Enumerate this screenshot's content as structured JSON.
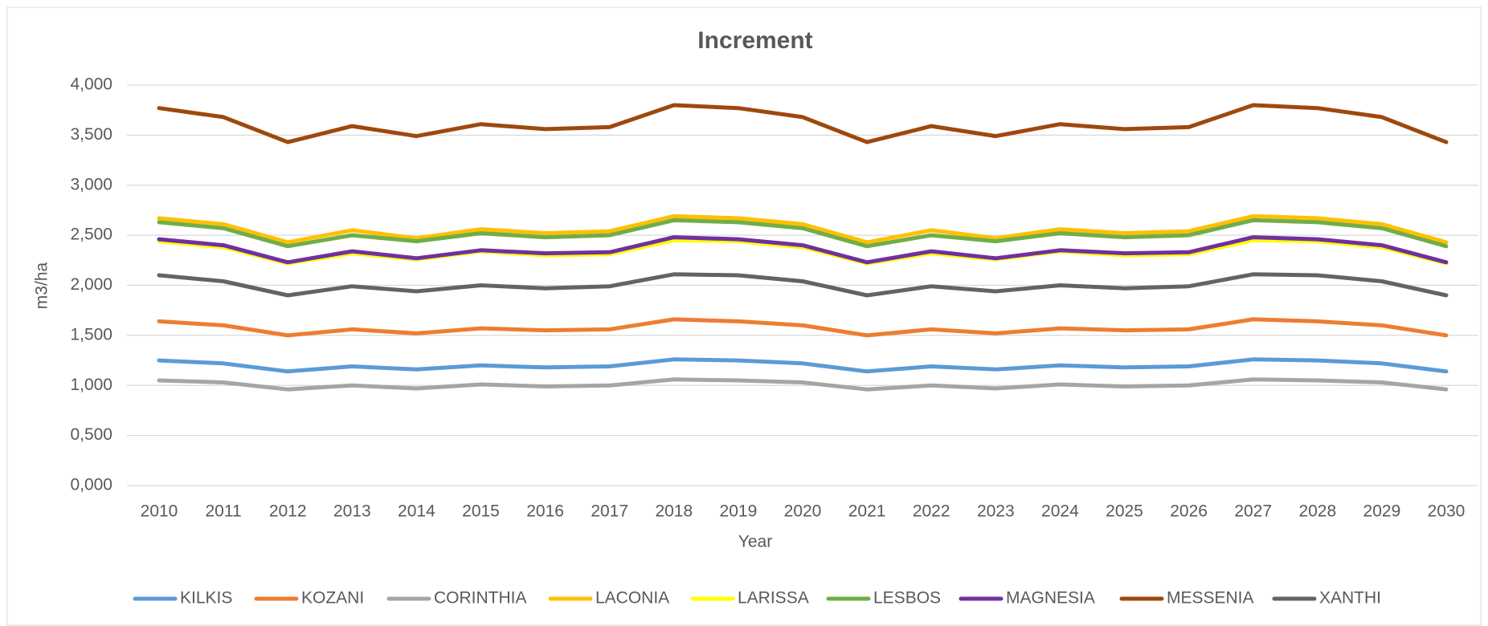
{
  "chart_data": {
    "type": "line",
    "title": "Increment",
    "x_label": "Year",
    "y_label": "m3/ha",
    "categories": [
      "2010",
      "2011",
      "2012",
      "2013",
      "2014",
      "2015",
      "2016",
      "2017",
      "2018",
      "2019",
      "2020",
      "2021",
      "2022",
      "2023",
      "2024",
      "2025",
      "2026",
      "2027",
      "2028",
      "2029",
      "2030"
    ],
    "ylim": [
      0,
      4
    ],
    "yticks": [
      {
        "value": 0,
        "label": "0,000"
      },
      {
        "value": 0.5,
        "label": "0,500"
      },
      {
        "value": 1,
        "label": "1,000"
      },
      {
        "value": 1.5,
        "label": "1,500"
      },
      {
        "value": 2,
        "label": "2,000"
      },
      {
        "value": 2.5,
        "label": "2,500"
      },
      {
        "value": 3,
        "label": "3,000"
      },
      {
        "value": 3.5,
        "label": "3,500"
      },
      {
        "value": 4,
        "label": "4,000"
      }
    ],
    "grid": true,
    "legend": "bottom",
    "series": [
      {
        "name": "KILKIS",
        "color": "#5b9bd5",
        "values": [
          1.25,
          1.22,
          1.14,
          1.19,
          1.16,
          1.2,
          1.18,
          1.19,
          1.26,
          1.25,
          1.22,
          1.14,
          1.19,
          1.16,
          1.2,
          1.18,
          1.19,
          1.26,
          1.25,
          1.22,
          1.14
        ]
      },
      {
        "name": "KOZANI",
        "color": "#ed7d31",
        "values": [
          1.64,
          1.6,
          1.5,
          1.56,
          1.52,
          1.57,
          1.55,
          1.56,
          1.66,
          1.64,
          1.6,
          1.5,
          1.56,
          1.52,
          1.57,
          1.55,
          1.56,
          1.66,
          1.64,
          1.6,
          1.5
        ]
      },
      {
        "name": "CORINTHIA",
        "color": "#a5a5a5",
        "values": [
          1.05,
          1.03,
          0.96,
          1.0,
          0.97,
          1.01,
          0.99,
          1.0,
          1.06,
          1.05,
          1.03,
          0.96,
          1.0,
          0.97,
          1.01,
          0.99,
          1.0,
          1.06,
          1.05,
          1.03,
          0.96
        ]
      },
      {
        "name": "LACONIA",
        "color": "#ffc000",
        "values": [
          2.67,
          2.61,
          2.43,
          2.55,
          2.47,
          2.56,
          2.52,
          2.54,
          2.69,
          2.67,
          2.61,
          2.43,
          2.55,
          2.47,
          2.56,
          2.52,
          2.54,
          2.69,
          2.67,
          2.61,
          2.43
        ]
      },
      {
        "name": "LARISSA",
        "color": "#ffff00",
        "values": [
          2.44,
          2.38,
          2.22,
          2.32,
          2.26,
          2.34,
          2.3,
          2.31,
          2.45,
          2.44,
          2.38,
          2.22,
          2.32,
          2.26,
          2.34,
          2.3,
          2.31,
          2.45,
          2.44,
          2.38,
          2.22
        ]
      },
      {
        "name": "LESBOS",
        "color": "#70ad47",
        "values": [
          2.63,
          2.57,
          2.39,
          2.5,
          2.44,
          2.52,
          2.48,
          2.5,
          2.65,
          2.63,
          2.57,
          2.39,
          2.5,
          2.44,
          2.52,
          2.48,
          2.5,
          2.65,
          2.63,
          2.57,
          2.39
        ]
      },
      {
        "name": "MAGNESIA",
        "color": "#7030a0",
        "values": [
          2.46,
          2.4,
          2.23,
          2.34,
          2.27,
          2.35,
          2.32,
          2.33,
          2.48,
          2.46,
          2.4,
          2.23,
          2.34,
          2.27,
          2.35,
          2.32,
          2.33,
          2.48,
          2.46,
          2.4,
          2.23
        ]
      },
      {
        "name": "MESSENIA",
        "color": "#9e480e",
        "values": [
          3.77,
          3.68,
          3.43,
          3.59,
          3.49,
          3.61,
          3.56,
          3.58,
          3.8,
          3.77,
          3.68,
          3.43,
          3.59,
          3.49,
          3.61,
          3.56,
          3.58,
          3.8,
          3.77,
          3.68,
          3.43
        ]
      },
      {
        "name": "XANTHI",
        "color": "#636363",
        "values": [
          2.1,
          2.04,
          1.9,
          1.99,
          1.94,
          2.0,
          1.97,
          1.99,
          2.11,
          2.1,
          2.04,
          1.9,
          1.99,
          1.94,
          2.0,
          1.97,
          1.99,
          2.11,
          2.1,
          2.04,
          1.9
        ]
      }
    ]
  }
}
